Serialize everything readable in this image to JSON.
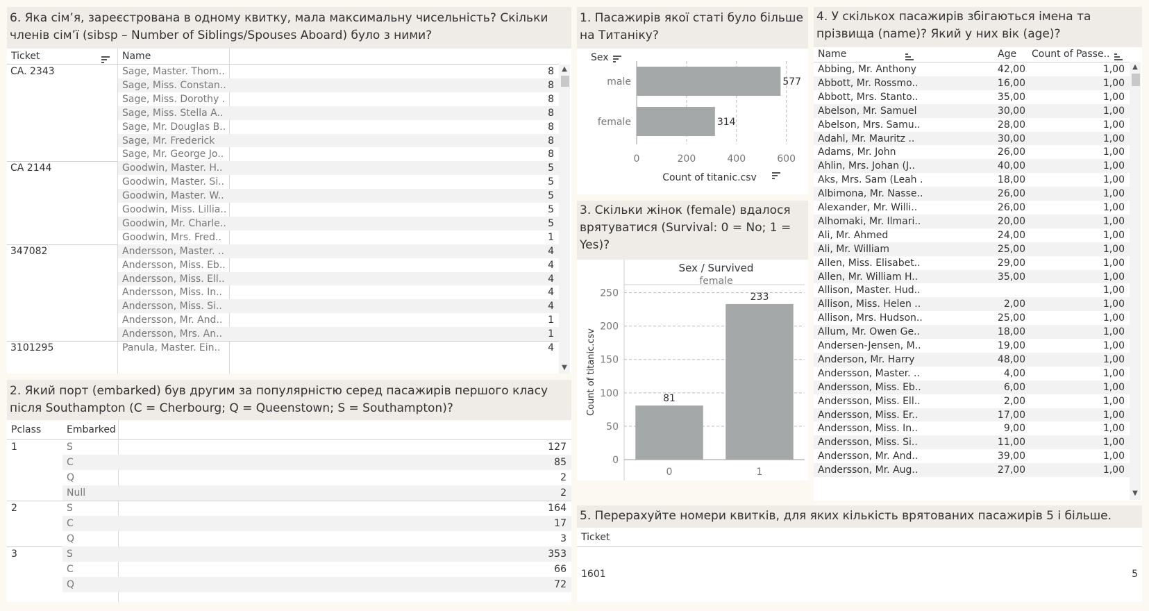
{
  "q6": {
    "title": "6. Яка сім’я, зареєстрована в одному квитку, мала максимальну чисельність? Скільки членів сім’ї (sibsp – Number of Siblings/Spouses Aboard) було з ними?",
    "col_ticket": "Ticket",
    "col_name": "Name",
    "groups": [
      {
        "ticket": "CA. 2343",
        "rows": [
          {
            "name": "Sage, Master. Thom..",
            "value": "8"
          },
          {
            "name": "Sage, Miss. Constan..",
            "value": "8"
          },
          {
            "name": "Sage, Miss. Dorothy ..",
            "value": "8"
          },
          {
            "name": "Sage, Miss. Stella A..",
            "value": "8"
          },
          {
            "name": "Sage, Mr. Douglas B..",
            "value": "8"
          },
          {
            "name": "Sage, Mr. Frederick",
            "value": "8"
          },
          {
            "name": "Sage, Mr. George Jo..",
            "value": "8"
          }
        ]
      },
      {
        "ticket": "CA 2144",
        "rows": [
          {
            "name": "Goodwin, Master. H..",
            "value": "5"
          },
          {
            "name": "Goodwin, Master. Si..",
            "value": "5"
          },
          {
            "name": "Goodwin, Master. W..",
            "value": "5"
          },
          {
            "name": "Goodwin, Miss. Lillia..",
            "value": "5"
          },
          {
            "name": "Goodwin, Mr. Charle..",
            "value": "5"
          },
          {
            "name": "Goodwin, Mrs. Fred..",
            "value": "1"
          }
        ]
      },
      {
        "ticket": "347082",
        "rows": [
          {
            "name": "Andersson, Master. ..",
            "value": "4"
          },
          {
            "name": "Andersson, Miss. Eb..",
            "value": "4"
          },
          {
            "name": "Andersson, Miss. Ell..",
            "value": "4"
          },
          {
            "name": "Andersson, Miss. In..",
            "value": "4"
          },
          {
            "name": "Andersson, Miss. Si..",
            "value": "4"
          },
          {
            "name": "Andersson, Mr. And..",
            "value": "1"
          },
          {
            "name": "Andersson, Mrs. An..",
            "value": "1"
          }
        ]
      },
      {
        "ticket": "3101295",
        "rows": [
          {
            "name": "Panula, Master. Ein..",
            "value": "4"
          }
        ]
      }
    ]
  },
  "q2": {
    "title": "2. Який порт (embarked) був другим за популярністю серед пасажирів першого класу після Southampton (C = Cherbourg; Q = Queenstown; S = Southampton)?",
    "col_pclass": "Pclass",
    "col_embarked": "Embarked",
    "groups": [
      {
        "pclass": "1",
        "rows": [
          {
            "embarked": "S",
            "value": "127"
          },
          {
            "embarked": "C",
            "value": "85"
          },
          {
            "embarked": "Q",
            "value": "2"
          },
          {
            "embarked": "Null",
            "value": "2"
          }
        ]
      },
      {
        "pclass": "2",
        "rows": [
          {
            "embarked": "S",
            "value": "164"
          },
          {
            "embarked": "C",
            "value": "17"
          },
          {
            "embarked": "Q",
            "value": "3"
          }
        ]
      },
      {
        "pclass": "3",
        "rows": [
          {
            "embarked": "S",
            "value": "353"
          },
          {
            "embarked": "C",
            "value": "66"
          },
          {
            "embarked": "Q",
            "value": "72"
          }
        ]
      }
    ]
  },
  "q1": {
    "title": "1. Пасажирів якої статі було більше на Титаніку?",
    "dim_label": "Sex",
    "chart_data": {
      "type": "bar",
      "orientation": "horizontal",
      "categories": [
        "male",
        "female"
      ],
      "values": [
        577,
        314
      ],
      "xlabel": "Count of titanic.csv",
      "xticks": [
        0,
        200,
        400,
        600
      ],
      "xlim": [
        0,
        640
      ],
      "grid": true
    }
  },
  "q3": {
    "title": "3. Скільки жінок (female) вдалося врятуватися (Survival: 0 = No; 1 = Yes)?",
    "header_top": "Sex / Survived",
    "header_sub": "female",
    "chart_data": {
      "type": "bar",
      "categories": [
        "0",
        "1"
      ],
      "values": [
        81,
        233
      ],
      "ylabel": "Count of titanic.csv",
      "yticks": [
        0,
        50,
        100,
        150,
        200,
        250
      ],
      "ylim": [
        0,
        262
      ],
      "grid": true
    }
  },
  "q4": {
    "title": "4. У скількох пасажирів збігаються імена та прізвища (name)? Який у них вік (age)?",
    "col_name": "Name",
    "col_age": "Age",
    "col_count": "Count of Passe..",
    "rows": [
      {
        "name": "Abbing, Mr. Anthony",
        "age": "42,00",
        "count": "1,00"
      },
      {
        "name": "Abbott, Mr. Rossmo..",
        "age": "16,00",
        "count": "1,00"
      },
      {
        "name": "Abbott, Mrs. Stanto..",
        "age": "35,00",
        "count": "1,00"
      },
      {
        "name": "Abelson, Mr. Samuel",
        "age": "30,00",
        "count": "1,00"
      },
      {
        "name": "Abelson, Mrs. Samu..",
        "age": "28,00",
        "count": "1,00"
      },
      {
        "name": "Adahl, Mr. Mauritz ..",
        "age": "30,00",
        "count": "1,00"
      },
      {
        "name": "Adams, Mr. John",
        "age": "26,00",
        "count": "1,00"
      },
      {
        "name": "Ahlin, Mrs. Johan (J..",
        "age": "40,00",
        "count": "1,00"
      },
      {
        "name": "Aks, Mrs. Sam (Leah ..",
        "age": "18,00",
        "count": "1,00"
      },
      {
        "name": "Albimona, Mr. Nasse..",
        "age": "26,00",
        "count": "1,00"
      },
      {
        "name": "Alexander, Mr. Willi..",
        "age": "26,00",
        "count": "1,00"
      },
      {
        "name": "Alhomaki, Mr. Ilmari..",
        "age": "20,00",
        "count": "1,00"
      },
      {
        "name": "Ali, Mr. Ahmed",
        "age": "24,00",
        "count": "1,00"
      },
      {
        "name": "Ali, Mr. William",
        "age": "25,00",
        "count": "1,00"
      },
      {
        "name": "Allen, Miss. Elisabet..",
        "age": "29,00",
        "count": "1,00"
      },
      {
        "name": "Allen, Mr. William H..",
        "age": "35,00",
        "count": "1,00"
      },
      {
        "name": "Allison, Master. Hud..",
        "age": "",
        "count": "1,00"
      },
      {
        "name": "Allison, Miss. Helen ..",
        "age": "2,00",
        "count": "1,00"
      },
      {
        "name": "Allison, Mrs. Hudson..",
        "age": "25,00",
        "count": "1,00"
      },
      {
        "name": "Allum, Mr. Owen Ge..",
        "age": "18,00",
        "count": "1,00"
      },
      {
        "name": "Andersen-Jensen, M..",
        "age": "19,00",
        "count": "1,00"
      },
      {
        "name": "Anderson, Mr. Harry",
        "age": "48,00",
        "count": "1,00"
      },
      {
        "name": "Andersson, Master. ..",
        "age": "4,00",
        "count": "1,00"
      },
      {
        "name": "Andersson, Miss. Eb..",
        "age": "6,00",
        "count": "1,00"
      },
      {
        "name": "Andersson, Miss. Ell..",
        "age": "2,00",
        "count": "1,00"
      },
      {
        "name": "Andersson, Miss. Er..",
        "age": "17,00",
        "count": "1,00"
      },
      {
        "name": "Andersson, Miss. In..",
        "age": "9,00",
        "count": "1,00"
      },
      {
        "name": "Andersson, Miss. Si..",
        "age": "11,00",
        "count": "1,00"
      },
      {
        "name": "Andersson, Mr. And..",
        "age": "39,00",
        "count": "1,00"
      },
      {
        "name": "Andersson, Mr. Aug..",
        "age": "27,00",
        "count": "1,00"
      }
    ]
  },
  "q5": {
    "title": "5. Перерахуйте номери квитків, для яких кількість врятованих пасажирів 5 і більше.",
    "col_ticket": "Ticket",
    "rows": [
      {
        "ticket": "1601",
        "value": "5"
      }
    ]
  },
  "colors": {
    "bar": "#a5a8a9",
    "title_bg": "#efebe6",
    "page_bg": "#fcf8f2",
    "stripe": "#f2f2f2"
  },
  "icons": {
    "sort": "sort-icon",
    "scroll_up": "scroll-up-icon",
    "scroll_down": "scroll-down-icon"
  }
}
